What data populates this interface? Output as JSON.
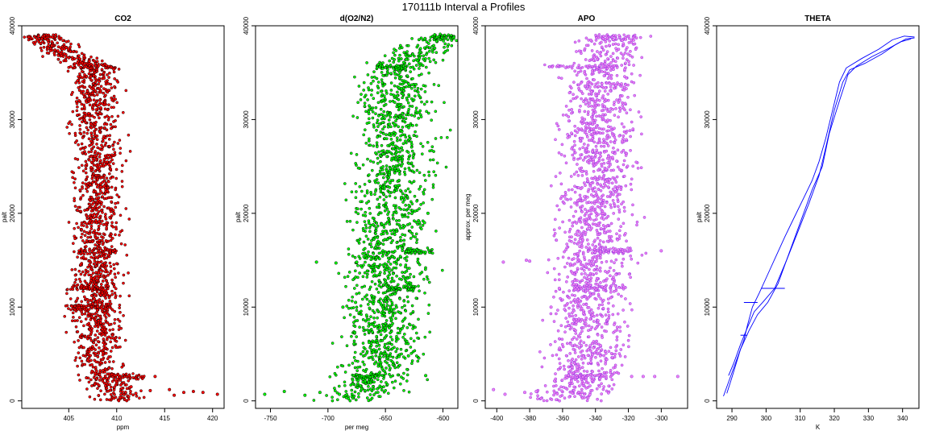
{
  "figure_title": "170111b   Interval a Profiles",
  "colors": {
    "co2": "#ff0000",
    "o2n2": "#00ff00",
    "apo": "#ee82ee",
    "theta": "#0000ff",
    "frame": "#000000"
  },
  "chart_data": [
    {
      "type": "scatter",
      "title": "CO2",
      "xlabel": "ppm",
      "ylabel": "palt",
      "xlim": [
        400.1,
        421.2
      ],
      "ylim": [
        -800,
        40000
      ],
      "xticks": [
        405,
        410,
        415,
        420
      ],
      "yticks": [
        0,
        10000,
        20000,
        30000,
        40000
      ],
      "color": "#ff0000",
      "outline": "#000000",
      "profile": [
        [
          0,
          410.4
        ],
        [
          1000,
          409.6
        ],
        [
          2000,
          409.0
        ],
        [
          3000,
          408.4
        ],
        [
          5000,
          407.8
        ],
        [
          8000,
          407.9
        ],
        [
          10000,
          407.6
        ],
        [
          12000,
          407.9
        ],
        [
          15000,
          408.1
        ],
        [
          18000,
          407.7
        ],
        [
          20000,
          408.0
        ],
        [
          25000,
          408.1
        ],
        [
          30000,
          407.8
        ],
        [
          33000,
          408.0
        ],
        [
          35500,
          407.9
        ],
        [
          37000,
          404.8
        ],
        [
          38800,
          402.0
        ]
      ],
      "spread": 1.2,
      "bands": [
        {
          "y": 38800,
          "x1": 401.0,
          "x2": 404.0
        },
        {
          "y": 35600,
          "x1": 405.5,
          "x2": 409.8
        },
        {
          "y": 16000,
          "x1": 406.0,
          "x2": 410.0
        },
        {
          "y": 12000,
          "x1": 404.8,
          "x2": 409.5
        },
        {
          "y": 10000,
          "x1": 405.2,
          "x2": 409.5
        },
        {
          "y": 2600,
          "x1": 409.0,
          "x2": 413.0
        }
      ],
      "outliers": [
        [
          1200,
          415.5
        ],
        [
          1000,
          418.0
        ],
        [
          700,
          420.5
        ],
        [
          900,
          417.0
        ],
        [
          1100,
          413.5
        ],
        [
          800,
          412.0
        ],
        [
          2600,
          414.0
        ],
        [
          1500,
          411.5
        ],
        [
          600,
          416.0
        ],
        [
          900,
          419.0
        ]
      ]
    },
    {
      "type": "scatter",
      "title": "d(O2/N2)",
      "xlabel": "per meg",
      "ylabel": "palt",
      "xlim": [
        -763,
        -587
      ],
      "ylim": [
        -800,
        40000
      ],
      "xticks": [
        -750,
        -700,
        -650,
        -600
      ],
      "yticks": [
        0,
        10000,
        20000,
        30000,
        40000
      ],
      "color": "#00ff00",
      "outline": "#000000",
      "profile": [
        [
          0,
          -680
        ],
        [
          1000,
          -668
        ],
        [
          2000,
          -662
        ],
        [
          3000,
          -656
        ],
        [
          5000,
          -652
        ],
        [
          8000,
          -651
        ],
        [
          10000,
          -652
        ],
        [
          12000,
          -649
        ],
        [
          15000,
          -648
        ],
        [
          18000,
          -646
        ],
        [
          20000,
          -645
        ],
        [
          25000,
          -641
        ],
        [
          30000,
          -643
        ],
        [
          33000,
          -642
        ],
        [
          35500,
          -638
        ],
        [
          37000,
          -620
        ],
        [
          38800,
          -602
        ]
      ],
      "spread": 16,
      "bands": [
        {
          "y": 38800,
          "x1": -611,
          "x2": -590
        },
        {
          "y": 35600,
          "x1": -658,
          "x2": -632
        },
        {
          "y": 16000,
          "x1": -633,
          "x2": -608
        },
        {
          "y": 12000,
          "x1": -650,
          "x2": -625
        },
        {
          "y": 2600,
          "x1": -678,
          "x2": -650
        }
      ],
      "outliers": [
        [
          700,
          -755
        ],
        [
          1000,
          -738
        ],
        [
          600,
          -720
        ],
        [
          900,
          -707
        ],
        [
          700,
          -690
        ],
        [
          14800,
          -710
        ],
        [
          14700,
          -693
        ],
        [
          14800,
          -675
        ],
        [
          10000,
          -687
        ],
        [
          10500,
          -676
        ],
        [
          2700,
          -615
        ],
        [
          4800,
          -630
        ],
        [
          20000,
          -613
        ],
        [
          19000,
          -616
        ]
      ]
    },
    {
      "type": "scatter",
      "title": "APO",
      "xlabel": "",
      "ylabel": "approx. per meg",
      "xlim": [
        -407,
        -284
      ],
      "ylim": [
        -800,
        40000
      ],
      "xticks": [
        -400,
        -380,
        -360,
        -340,
        -320,
        -300
      ],
      "yticks": [
        0,
        10000,
        20000,
        30000,
        40000
      ],
      "color": "#ee82ee",
      "outline": "#8a2be2",
      "profile": [
        [
          0,
          -356
        ],
        [
          1000,
          -352
        ],
        [
          2000,
          -349
        ],
        [
          3000,
          -346
        ],
        [
          5000,
          -345
        ],
        [
          8000,
          -344
        ],
        [
          10000,
          -345
        ],
        [
          12000,
          -342
        ],
        [
          15000,
          -341
        ],
        [
          18000,
          -340
        ],
        [
          20000,
          -340
        ],
        [
          25000,
          -337
        ],
        [
          30000,
          -338
        ],
        [
          33000,
          -337
        ],
        [
          35500,
          -335
        ],
        [
          37000,
          -333
        ],
        [
          38800,
          -330
        ]
      ],
      "spread": 11,
      "bands": [
        {
          "y": 38800,
          "x1": -340,
          "x2": -316
        },
        {
          "y": 35600,
          "x1": -372,
          "x2": -330
        },
        {
          "y": 16000,
          "x1": -345,
          "x2": -318
        },
        {
          "y": 12000,
          "x1": -352,
          "x2": -322
        },
        {
          "y": 2600,
          "x1": -357,
          "x2": -333
        }
      ],
      "outliers": [
        [
          1200,
          -402
        ],
        [
          700,
          -395
        ],
        [
          900,
          -383
        ],
        [
          1000,
          -376
        ],
        [
          14800,
          -396
        ],
        [
          14900,
          -380
        ],
        [
          15000,
          -382
        ],
        [
          2600,
          -318
        ],
        [
          2600,
          -304
        ],
        [
          2600,
          -290
        ],
        [
          2600,
          -311
        ],
        [
          16000,
          -300
        ],
        [
          10000,
          -367
        ],
        [
          12000,
          -362
        ]
      ]
    },
    {
      "type": "line",
      "title": "THETA",
      "xlabel": "K",
      "ylabel": "palt",
      "xlim": [
        285.5,
        344.8
      ],
      "ylim": [
        -800,
        40000
      ],
      "xticks": [
        290,
        300,
        310,
        320,
        330,
        340
      ],
      "yticks": [
        0,
        10000,
        20000,
        30000,
        40000
      ],
      "color": "#0000ff",
      "series": [
        {
          "name": "",
          "points": [
            [
              287.5,
              500
            ],
            [
              289,
              2000
            ],
            [
              290.5,
              3500
            ],
            [
              292,
              5000
            ],
            [
              293.5,
              6500
            ],
            [
              294.5,
              8000
            ],
            [
              296,
              10000
            ],
            [
              298,
              11500
            ],
            [
              300.5,
              13500
            ],
            [
              303,
              15500
            ],
            [
              305.5,
              17500
            ],
            [
              307.5,
              19000
            ],
            [
              309.5,
              20500
            ],
            [
              311.5,
              22000
            ],
            [
              313.5,
              23500
            ],
            [
              315.5,
              25500
            ],
            [
              317.5,
              28000
            ],
            [
              319.5,
              31000
            ],
            [
              321.5,
              34000
            ],
            [
              323.5,
              35500
            ],
            [
              328,
              36500
            ],
            [
              333,
              37500
            ],
            [
              337,
              38500
            ],
            [
              340.5,
              38900
            ],
            [
              343.5,
              38800
            ]
          ]
        },
        {
          "name": "",
          "points": [
            [
              289,
              2700
            ],
            [
              290.5,
              4000
            ],
            [
              292.5,
              6000
            ],
            [
              294.5,
              7800
            ],
            [
              296.5,
              9500
            ],
            [
              299,
              10500
            ],
            [
              302.5,
              12000
            ],
            [
              306,
              15000
            ],
            [
              309.5,
              18200
            ],
            [
              312.5,
              21000
            ],
            [
              315.5,
              24000
            ],
            [
              317.5,
              27000
            ],
            [
              320,
              31000
            ],
            [
              322.5,
              34000
            ],
            [
              324.5,
              35300
            ],
            [
              329,
              36000
            ],
            [
              334,
              37000
            ],
            [
              338,
              38000
            ],
            [
              341,
              38600
            ],
            [
              343.5,
              38700
            ]
          ]
        },
        {
          "name": "",
          "points": [
            [
              288.5,
              800
            ],
            [
              290,
              2500
            ],
            [
              292.5,
              5500
            ],
            [
              295,
              7500
            ],
            [
              297.5,
              9200
            ],
            [
              300.5,
              10500
            ],
            [
              303.5,
              12500
            ],
            [
              307,
              16000
            ],
            [
              310.5,
              19500
            ],
            [
              313.5,
              22500
            ],
            [
              316.5,
              25000
            ],
            [
              318.5,
              28500
            ],
            [
              321.5,
              32000
            ],
            [
              324,
              34800
            ],
            [
              326.5,
              35700
            ],
            [
              331,
              36700
            ],
            [
              336,
              37600
            ],
            [
              339.5,
              38300
            ],
            [
              342.5,
              38600
            ]
          ]
        }
      ],
      "segments": [
        {
          "y": 12000,
          "x1": 298.5,
          "x2": 305.5
        },
        {
          "y": 10500,
          "x1": 293.5,
          "x2": 297.5
        },
        {
          "y": 7000,
          "x1": 292.5,
          "x2": 294.5
        }
      ]
    }
  ]
}
